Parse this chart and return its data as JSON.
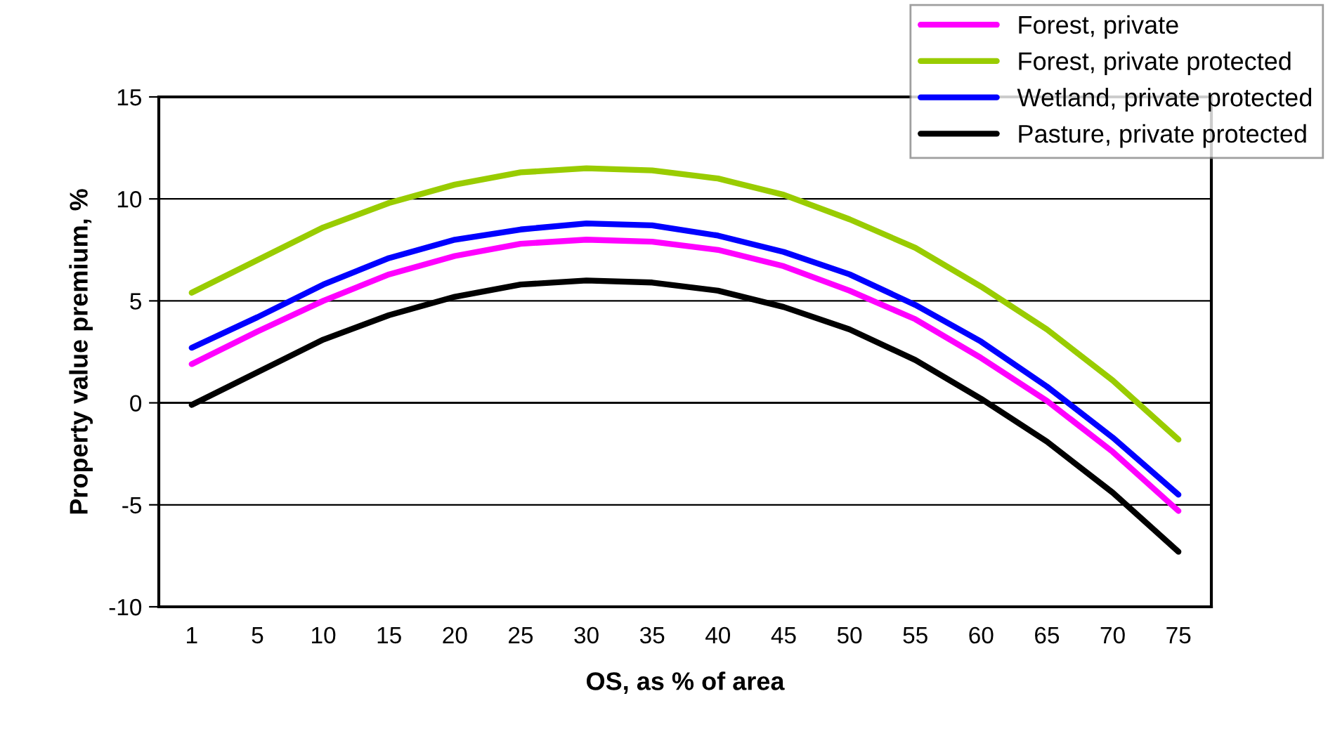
{
  "chart_data": {
    "type": "line",
    "xlabel": "OS, as % of area",
    "ylabel": "Property value premium, %",
    "categories": [
      "1",
      "5",
      "10",
      "15",
      "20",
      "25",
      "30",
      "35",
      "40",
      "45",
      "50",
      "55",
      "60",
      "65",
      "70",
      "75"
    ],
    "series": [
      {
        "name": "Forest, private",
        "color": "#ff00ff",
        "values": [
          1.9,
          3.5,
          5.0,
          6.3,
          7.2,
          7.8,
          8.0,
          7.9,
          7.5,
          6.7,
          5.5,
          4.1,
          2.2,
          0.1,
          -2.4,
          -5.3
        ]
      },
      {
        "name": "Forest, private protected",
        "color": "#99cc00",
        "values": [
          5.4,
          7.0,
          8.6,
          9.8,
          10.7,
          11.3,
          11.5,
          11.4,
          11.0,
          10.2,
          9.0,
          7.6,
          5.7,
          3.6,
          1.1,
          -1.8
        ]
      },
      {
        "name": "Wetland, private protected",
        "color": "#0000ff",
        "values": [
          2.7,
          4.2,
          5.8,
          7.1,
          8.0,
          8.5,
          8.8,
          8.7,
          8.2,
          7.4,
          6.3,
          4.8,
          3.0,
          0.8,
          -1.7,
          -4.5
        ]
      },
      {
        "name": "Pasture, private protected",
        "color": "#000000",
        "values": [
          -0.1,
          1.5,
          3.1,
          4.3,
          5.2,
          5.8,
          6.0,
          5.9,
          5.5,
          4.7,
          3.6,
          2.1,
          0.2,
          -1.9,
          -4.4,
          -7.3
        ]
      }
    ],
    "ylim": [
      -10,
      15
    ],
    "yticks": [
      -10,
      -5,
      0,
      5,
      10,
      15
    ],
    "grid": "y",
    "legend": "top right",
    "marker": "none",
    "line_style": "solid"
  }
}
